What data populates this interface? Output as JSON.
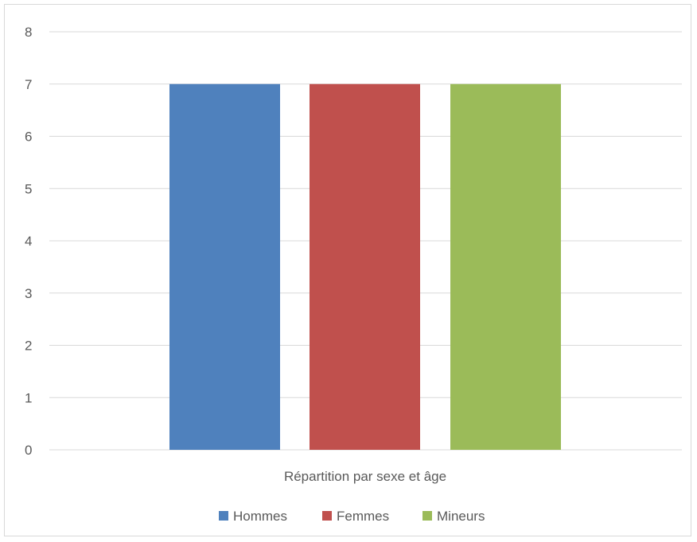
{
  "chart_data": {
    "type": "bar",
    "categories": [
      "Répartition par sexe et âge"
    ],
    "series": [
      {
        "name": "Hommes",
        "values": [
          7
        ],
        "color": "#4f81bd"
      },
      {
        "name": "Femmes",
        "values": [
          7
        ],
        "color": "#c0504d"
      },
      {
        "name": "Mineurs",
        "values": [
          7
        ],
        "color": "#9bbb59"
      }
    ],
    "yticks": [
      "0",
      "1",
      "2",
      "3",
      "4",
      "5",
      "6",
      "7",
      "8"
    ],
    "ylim": [
      0,
      8
    ],
    "grid": true,
    "legend_position": "bottom",
    "gridline_color": "#d9d9d9"
  }
}
